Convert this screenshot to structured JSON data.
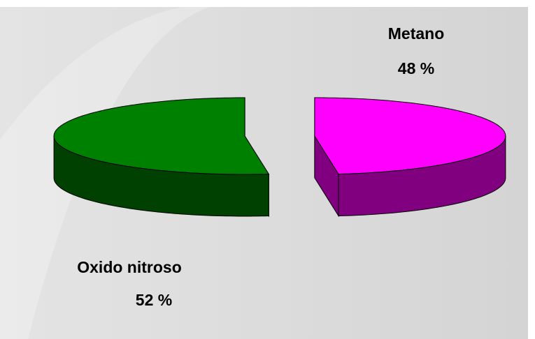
{
  "chart_data": {
    "type": "pie3d",
    "categories": [
      "Metano",
      "Oxido nitroso"
    ],
    "values": [
      48,
      52
    ],
    "value_labels": [
      "48 %",
      "52 %"
    ],
    "colors": [
      "#ff00ff",
      "#008000"
    ]
  }
}
